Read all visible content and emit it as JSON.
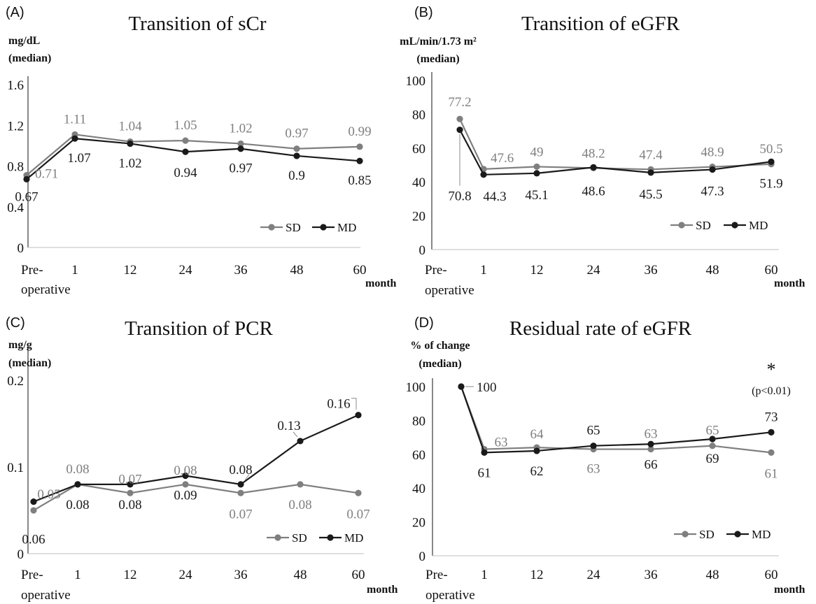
{
  "colors": {
    "SD": "#7f7f7f",
    "MD": "#1a1a1a",
    "axis": "#111111",
    "baseline": "#cccccc"
  },
  "chart_data": [
    {
      "type": "line",
      "panel": "(A)",
      "title": "Transition of sCr",
      "ylabel": "mg/dL\n(median)",
      "xlabel": "month",
      "categories": [
        "Pre-\noperative",
        "1",
        "12",
        "24",
        "36",
        "48",
        "60"
      ],
      "ylim": [
        0,
        1.6
      ],
      "yticks": [
        0,
        0.4,
        0.8,
        1.2,
        1.6
      ],
      "legend": "bottom-right",
      "series": [
        {
          "name": "SD",
          "values": [
            0.71,
            1.11,
            1.04,
            1.05,
            1.02,
            0.97,
            0.99
          ],
          "labels": [
            "0.71",
            "1.11",
            "1.04",
            "1.05",
            "1.02",
            "0.97",
            "0.99"
          ]
        },
        {
          "name": "MD",
          "values": [
            0.67,
            1.07,
            1.02,
            0.94,
            0.97,
            0.9,
            0.85
          ],
          "labels": [
            "0.67",
            "1.07",
            "1.02",
            "0.94",
            "0.97",
            "0.9",
            "0.85"
          ]
        }
      ]
    },
    {
      "type": "line",
      "panel": "(B)",
      "title": "Transition of eGFR",
      "ylabel": "mL/min/1.73 m²\n(median)",
      "xlabel": "month",
      "categories": [
        "Pre-\noperative",
        "1",
        "12",
        "24",
        "36",
        "48",
        "60"
      ],
      "ylim": [
        0,
        100
      ],
      "yticks": [
        0,
        20,
        40,
        60,
        80,
        100
      ],
      "legend": "bottom-right",
      "series": [
        {
          "name": "SD",
          "values": [
            77.2,
            47.6,
            49,
            48.2,
            47.4,
            48.9,
            50.5
          ],
          "labels": [
            "77.2",
            "47.6",
            "49",
            "48.2",
            "47.4",
            "48.9",
            "50.5"
          ]
        },
        {
          "name": "MD",
          "values": [
            70.8,
            44.3,
            45.1,
            48.6,
            45.5,
            47.3,
            51.9
          ],
          "labels": [
            "70.8",
            "44.3",
            "45.1",
            "48.6",
            "45.5",
            "47.3",
            "51.9"
          ]
        }
      ]
    },
    {
      "type": "line",
      "panel": "(C)",
      "title": "Transition of PCR",
      "ylabel": "mg/g\n(median)",
      "xlabel": "month",
      "categories": [
        "Pre-\noperative",
        "1",
        "12",
        "24",
        "36",
        "48",
        "60"
      ],
      "ylim": [
        0,
        0.23
      ],
      "yticks": [
        0,
        0.1,
        0.2
      ],
      "ytick_labels": [
        "0",
        "0.1",
        "0.2"
      ],
      "legend": "bottom-right",
      "series": [
        {
          "name": "SD",
          "values": [
            0.05,
            0.08,
            0.07,
            0.08,
            0.07,
            0.08,
            0.07
          ],
          "labels": [
            "0.05",
            "0.08",
            "0.07",
            "0.08",
            "0.07",
            "0.08",
            "0.07"
          ]
        },
        {
          "name": "MD",
          "values": [
            0.06,
            0.08,
            0.08,
            0.09,
            0.08,
            0.13,
            0.16
          ],
          "labels": [
            "0.06",
            "0.08",
            "0.08",
            "0.09",
            "0.08",
            "0.13",
            "0.16"
          ]
        }
      ]
    },
    {
      "type": "line",
      "panel": "(D)",
      "title": "Residual rate of eGFR",
      "ylabel": "% of change\n(median)",
      "xlabel": "month",
      "categories": [
        "Pre-\noperative",
        "1",
        "12",
        "24",
        "36",
        "48",
        "60"
      ],
      "ylim": [
        0,
        100
      ],
      "yticks": [
        0,
        20,
        40,
        60,
        80,
        100
      ],
      "legend": "bottom-right",
      "annotation": {
        "mark": "*",
        "text": "(p<0.01)"
      },
      "series": [
        {
          "name": "SD",
          "values": [
            100,
            63,
            64,
            63,
            63,
            65,
            61
          ],
          "labels": [
            "",
            "63",
            "64",
            "63",
            "63",
            "65",
            "61"
          ]
        },
        {
          "name": "MD",
          "values": [
            100,
            61,
            62,
            65,
            66,
            69,
            73
          ],
          "labels": [
            "100",
            "61",
            "62",
            "65",
            "66",
            "69",
            "73"
          ]
        }
      ]
    }
  ]
}
